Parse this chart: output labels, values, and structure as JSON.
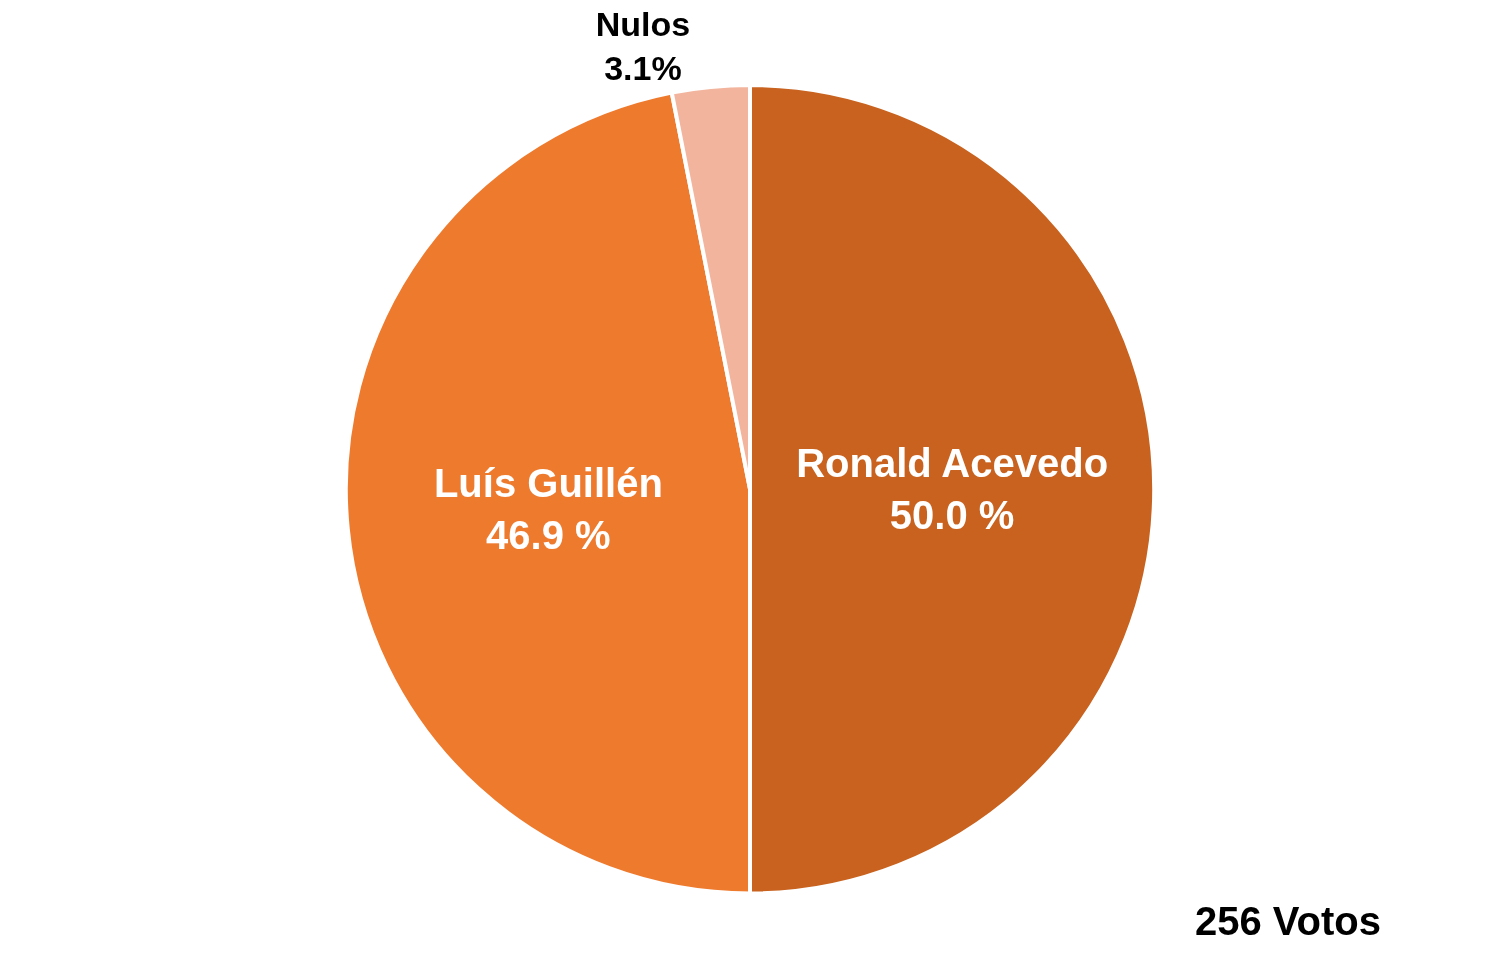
{
  "chart_data": {
    "type": "pie",
    "categories": [
      "Ronald Acevedo",
      "Luís Guillén",
      "Nulos"
    ],
    "values": [
      50.0,
      46.9,
      3.1
    ],
    "value_labels": [
      "50.0 %",
      "46.9 %",
      "3.1%"
    ],
    "colors": [
      "#c8621e",
      "#ee7a2e",
      "#f2b49c"
    ],
    "annotations": [
      "256 Votos"
    ],
    "legend": false
  }
}
